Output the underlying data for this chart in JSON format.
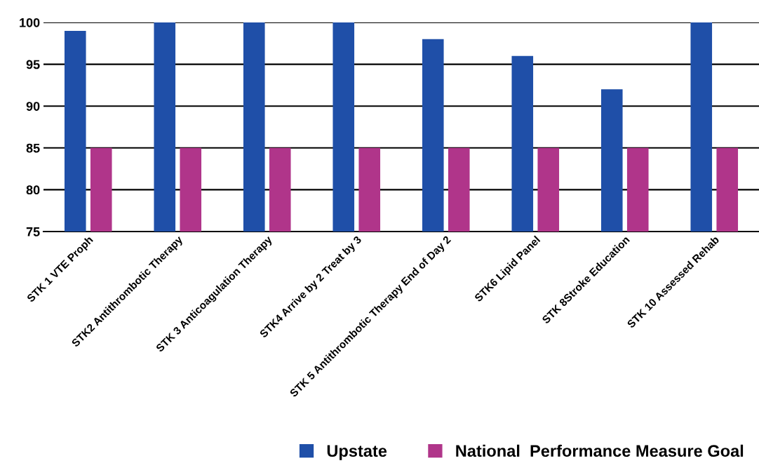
{
  "chart_data": {
    "type": "bar",
    "categories": [
      "STK 1 VTE Proph",
      "STK2 Antithrombotic Therapy",
      "STK 3 Anticoagulation Therapy",
      "STK4 Arrive by 2 Treat by 3",
      "STK 5 Antithrombotic Therapy End of Day 2",
      "STK6 Lipid Panel",
      "STK 8Stroke Education",
      "STK 10 Assessed Rehab"
    ],
    "series": [
      {
        "name": "Upstate",
        "color": "#1f4fa8",
        "values": [
          99,
          100,
          100,
          100,
          98,
          96,
          92,
          100
        ]
      },
      {
        "name": "National  Performance Measure Goal",
        "color": "#b0358a",
        "values": [
          85,
          85,
          85,
          85,
          85,
          85,
          85,
          85
        ]
      }
    ],
    "ylim": [
      75,
      100
    ],
    "yticks": [
      75,
      80,
      85,
      90,
      95,
      100
    ],
    "grid": "y",
    "legend": "bottom right"
  }
}
